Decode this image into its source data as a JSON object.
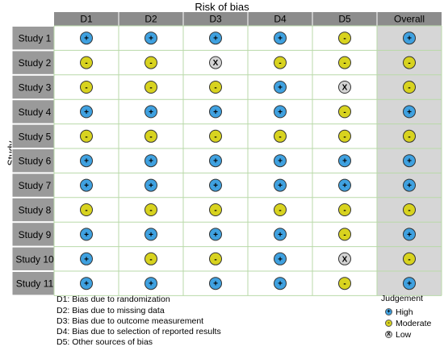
{
  "chart_data": {
    "type": "heatmap",
    "title": "Risk of bias",
    "ylabel": "Study",
    "columns": [
      "D1",
      "D2",
      "D3",
      "D4",
      "D5",
      "Overall"
    ],
    "rows": [
      "Study 1",
      "Study 2",
      "Study 3",
      "Study 4",
      "Study 5",
      "Study 6",
      "Study 7",
      "Study 8",
      "Study 9",
      "Study 10",
      "Study 11"
    ],
    "values": [
      [
        "High",
        "High",
        "High",
        "High",
        "Moderate",
        "High"
      ],
      [
        "Moderate",
        "Moderate",
        "Low",
        "Moderate",
        "Moderate",
        "Moderate"
      ],
      [
        "Moderate",
        "Moderate",
        "Moderate",
        "High",
        "Low",
        "Moderate"
      ],
      [
        "High",
        "High",
        "High",
        "High",
        "Moderate",
        "High"
      ],
      [
        "Moderate",
        "Moderate",
        "Moderate",
        "Moderate",
        "Moderate",
        "Moderate"
      ],
      [
        "High",
        "High",
        "High",
        "High",
        "High",
        "High"
      ],
      [
        "High",
        "High",
        "High",
        "High",
        "High",
        "High"
      ],
      [
        "Moderate",
        "Moderate",
        "Moderate",
        "Moderate",
        "Moderate",
        "Moderate"
      ],
      [
        "High",
        "High",
        "High",
        "High",
        "Moderate",
        "High"
      ],
      [
        "High",
        "Moderate",
        "Moderate",
        "High",
        "Low",
        "Moderate"
      ],
      [
        "High",
        "High",
        "High",
        "High",
        "Moderate",
        "High"
      ]
    ],
    "judgement_colors": {
      "High": "#3fa1e0",
      "Moderate": "#d8d31f",
      "Low": "#d4d4d4"
    },
    "judgement_symbols": {
      "High": "+",
      "Moderate": "-",
      "Low": "X"
    },
    "footnotes": [
      "D1: Bias due to randomization",
      "D2: Bias due to missing data",
      "D3: Bias due to outcome measurement",
      "D4: Bias due to selection of reported results",
      "D5: Other sources of bias"
    ],
    "legend": {
      "title": "Judgement",
      "items": [
        "High",
        "Moderate",
        "Low"
      ],
      "placement": "bottom-right"
    }
  }
}
